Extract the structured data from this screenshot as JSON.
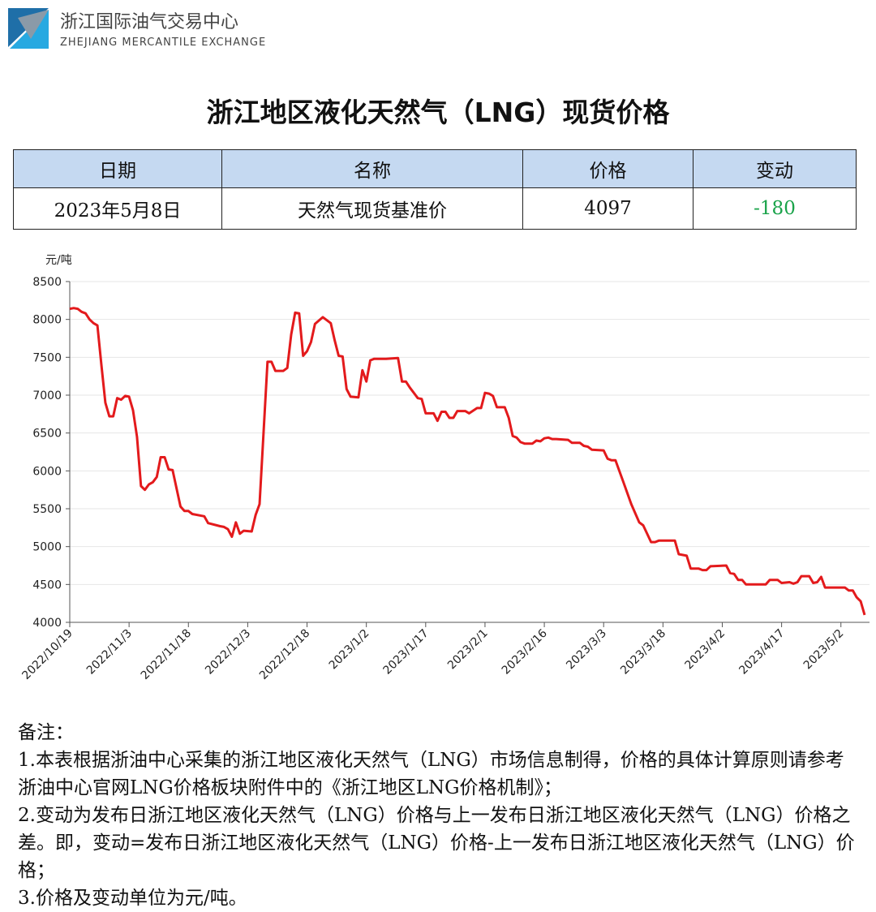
{
  "header": {
    "org_name": "浙江国际油气交易中心",
    "org_name_en": "ZHEJIANG MERCANTILE EXCHANGE"
  },
  "title": "浙江地区液化天然气（LNG）现货价格",
  "table": {
    "headers": [
      "日期",
      "名称",
      "价格",
      "变动"
    ],
    "rows": [
      [
        "2023年5月8日",
        "天然气现货基准价",
        "4097",
        "-180"
      ]
    ]
  },
  "chart_data": {
    "type": "line",
    "y_label": "元/吨",
    "x": [
      "2022/10/19",
      "2022/10/20",
      "2022/10/21",
      "2022/10/22",
      "2022/10/23",
      "2022/10/24",
      "2022/10/25",
      "2022/10/26",
      "2022/10/27",
      "2022/10/28",
      "2022/10/29",
      "2022/10/30",
      "2022/10/31",
      "2022/11/1",
      "2022/11/2",
      "2022/11/3",
      "2022/11/4",
      "2022/11/5",
      "2022/11/6",
      "2022/11/7",
      "2022/11/8",
      "2022/11/9",
      "2022/11/10",
      "2022/11/11",
      "2022/11/12",
      "2022/11/13",
      "2022/11/14",
      "2022/11/16",
      "2022/11/17",
      "2022/11/18",
      "2022/11/19",
      "2022/11/22",
      "2022/11/23",
      "2022/11/26",
      "2022/11/27",
      "2022/11/28",
      "2022/11/29",
      "2022/11/30",
      "2022/12/1",
      "2022/12/2",
      "2022/12/4",
      "2022/12/5",
      "2022/12/6",
      "2022/12/7",
      "2022/12/8",
      "2022/12/9",
      "2022/12/10",
      "2022/12/12",
      "2022/12/13",
      "2022/12/14",
      "2022/12/15",
      "2022/12/16",
      "2022/12/17",
      "2022/12/18",
      "2022/12/19",
      "2022/12/20",
      "2022/12/22",
      "2022/12/24",
      "2022/12/25",
      "2022/12/26",
      "2022/12/27",
      "2022/12/28",
      "2022/12/29",
      "2022/12/31",
      "2023/1/1",
      "2023/1/2",
      "2023/1/3",
      "2023/1/4",
      "2023/1/7",
      "2023/1/10",
      "2023/1/11",
      "2023/1/12",
      "2023/1/13",
      "2023/1/15",
      "2023/1/16",
      "2023/1/17",
      "2023/1/19",
      "2023/1/20",
      "2023/1/21",
      "2023/1/22",
      "2023/1/23",
      "2023/1/24",
      "2023/1/25",
      "2023/1/27",
      "2023/1/28",
      "2023/1/30",
      "2023/1/31",
      "2023/2/1",
      "2023/2/2",
      "2023/2/3",
      "2023/2/4",
      "2023/2/6",
      "2023/2/7",
      "2023/2/8",
      "2023/2/9",
      "2023/2/10",
      "2023/2/11",
      "2023/2/13",
      "2023/2/14",
      "2023/2/15",
      "2023/2/16",
      "2023/2/17",
      "2023/2/18",
      "2023/2/19",
      "2023/2/22",
      "2023/2/23",
      "2023/2/25",
      "2023/2/26",
      "2023/2/27",
      "2023/2/28",
      "2023/3/3",
      "2023/3/4",
      "2023/3/5",
      "2023/3/6",
      "2023/3/8",
      "2023/3/10",
      "2023/3/12",
      "2023/3/13",
      "2023/3/15",
      "2023/3/16",
      "2023/3/17",
      "2023/3/21",
      "2023/3/22",
      "2023/3/24",
      "2023/3/25",
      "2023/3/27",
      "2023/3/28",
      "2023/3/29",
      "2023/3/30",
      "2023/4/3",
      "2023/4/4",
      "2023/4/5",
      "2023/4/6",
      "2023/4/7",
      "2023/4/8",
      "2023/4/13",
      "2023/4/14",
      "2023/4/16",
      "2023/4/17",
      "2023/4/19",
      "2023/4/20",
      "2023/4/21",
      "2023/4/22",
      "2023/4/24",
      "2023/4/25",
      "2023/4/26",
      "2023/4/27",
      "2023/4/28",
      "2023/5/3",
      "2023/5/4",
      "2023/5/5",
      "2023/5/6",
      "2023/5/7",
      "2023/5/8"
    ],
    "series": [
      {
        "name": "天然气现货基准价",
        "color": "#e31a1c",
        "values": [
          8140,
          8150,
          8140,
          8100,
          8080,
          8000,
          7950,
          7920,
          7400,
          6900,
          6720,
          6720,
          6960,
          6940,
          6990,
          6980,
          6800,
          6450,
          5800,
          5750,
          5820,
          5850,
          5920,
          6180,
          6180,
          6020,
          6010,
          5530,
          5470,
          5470,
          5430,
          5400,
          5310,
          5270,
          5260,
          5230,
          5130,
          5320,
          5170,
          5210,
          5200,
          5420,
          5560,
          6500,
          7440,
          7440,
          7320,
          7320,
          7360,
          7800,
          8090,
          8080,
          7520,
          7580,
          7700,
          7940,
          8030,
          7950,
          7720,
          7520,
          7510,
          7080,
          6980,
          6970,
          7330,
          7180,
          7460,
          7480,
          7480,
          7490,
          7180,
          7180,
          7100,
          6960,
          6950,
          6760,
          6760,
          6660,
          6780,
          6780,
          6700,
          6700,
          6790,
          6790,
          6760,
          6830,
          6830,
          7030,
          7020,
          6990,
          6840,
          6840,
          6700,
          6460,
          6440,
          6380,
          6360,
          6360,
          6400,
          6390,
          6430,
          6440,
          6420,
          6420,
          6410,
          6370,
          6370,
          6330,
          6320,
          6280,
          6270,
          6160,
          6140,
          6140,
          5850,
          5560,
          5320,
          5280,
          5060,
          5060,
          5080,
          5080,
          4900,
          4880,
          4710,
          4710,
          4690,
          4690,
          4740,
          4750,
          4650,
          4640,
          4560,
          4560,
          4500,
          4500,
          4560,
          4560,
          4520,
          4530,
          4510,
          4530,
          4610,
          4610,
          4520,
          4530,
          4600,
          4460,
          4460,
          4420,
          4420,
          4330,
          4277,
          4097
        ]
      }
    ],
    "xlim": [
      "2022/10/19",
      "2023/5/8"
    ],
    "xticks": [
      "2022/10/19",
      "2022/11/3",
      "2022/11/18",
      "2022/12/3",
      "2022/12/18",
      "2023/1/2",
      "2023/1/17",
      "2023/2/1",
      "2023/2/16",
      "2023/3/3",
      "2023/3/18",
      "2023/4/2",
      "2023/4/17",
      "2023/5/2"
    ],
    "ylim": [
      4000,
      8500
    ],
    "yticks": [
      4000,
      4500,
      5000,
      5500,
      6000,
      6500,
      7000,
      7500,
      8000,
      8500
    ],
    "grid": true
  },
  "notes": {
    "heading": "备注：",
    "items": [
      "1.本表根据浙油中心采集的浙江地区液化天然气（LNG）市场信息制得，价格的具体计算原则请参考浙油中心官网LNG价格板块附件中的《浙江地区LNG价格机制》；",
      "2.变动为发布日浙江地区液化天然气（LNG）价格与上一发布日浙江地区液化天然气（LNG）价格之差。即，变动=发布日浙江地区液化天然气（LNG）价格-上一发布日浙江地区液化天然气（LNG）价格；",
      "3.价格及变动单位为元/吨。"
    ]
  }
}
